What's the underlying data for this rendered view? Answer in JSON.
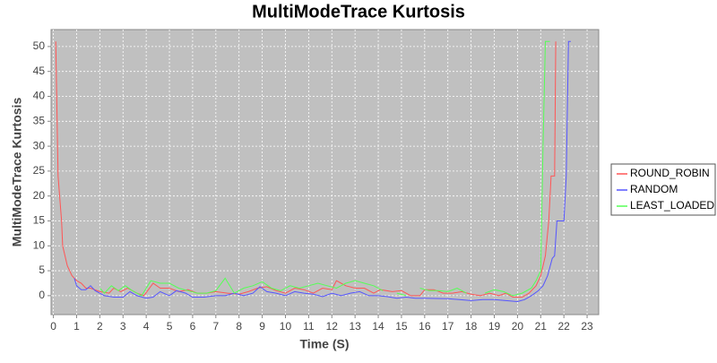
{
  "chart_data": {
    "type": "line",
    "title": "MultiModeTrace Kurtosis",
    "x_label": "Time (S)",
    "y_label": "MultiModeTrace Kurtosis",
    "xlim": [
      -0.1,
      23.5
    ],
    "ylim": [
      -3.8,
      53.4
    ],
    "xticks": [
      0,
      1,
      2,
      3,
      4,
      5,
      6,
      7,
      8,
      9,
      10,
      11,
      12,
      13,
      14,
      15,
      16,
      17,
      18,
      19,
      20,
      21,
      22,
      23
    ],
    "yticks": [
      0,
      5,
      10,
      15,
      20,
      25,
      30,
      35,
      40,
      45,
      50
    ],
    "grid": true,
    "legend": "right",
    "series": [
      {
        "name": "ROUND_ROBIN",
        "color": "#ff5555",
        "x": [
          0.1,
          0.2,
          0.35,
          0.4,
          0.6,
          0.8,
          1.0,
          1.2,
          1.4,
          1.6,
          2.0,
          2.4,
          2.6,
          2.9,
          3.2,
          3.6,
          3.9,
          4.3,
          4.6,
          5.0,
          5.4,
          5.8,
          6.2,
          6.6,
          7.0,
          7.5,
          8.0,
          8.4,
          8.8,
          9.2,
          9.6,
          10.0,
          10.4,
          10.8,
          11.2,
          11.6,
          12.0,
          12.2,
          12.6,
          13.0,
          13.4,
          13.8,
          14.1,
          14.6,
          15.0,
          15.4,
          15.8,
          16.0,
          16.4,
          16.8,
          17.2,
          17.6,
          18.0,
          18.4,
          18.8,
          19.2,
          19.5,
          19.8,
          20.2,
          20.5,
          20.8,
          21.0,
          21.2,
          21.35,
          21.45,
          21.6,
          21.65
        ],
        "values": [
          51,
          24,
          15,
          10,
          6,
          4,
          3,
          2.5,
          1.5,
          1.5,
          0.8,
          0.5,
          1.5,
          0.8,
          1.5,
          0.5,
          0,
          2.5,
          1.5,
          1.5,
          0.8,
          1.2,
          0.5,
          0.5,
          0.8,
          0.5,
          0.3,
          0.8,
          1.5,
          1.8,
          1,
          0.5,
          1.5,
          1.2,
          0.5,
          1.5,
          1.2,
          3,
          2,
          1.5,
          1.5,
          0.5,
          1.2,
          0.8,
          1,
          0,
          0,
          1.2,
          1.2,
          0.5,
          0.5,
          0.8,
          0.3,
          0,
          0.5,
          0,
          0.5,
          -0.3,
          -0.3,
          0.5,
          2,
          4,
          8,
          15,
          24,
          24,
          51
        ]
      },
      {
        "name": "RANDOM",
        "color": "#5555ff",
        "x": [
          0.9,
          1.0,
          1.2,
          1.4,
          1.6,
          1.8,
          2.2,
          2.6,
          3.0,
          3.3,
          3.6,
          4.0,
          4.3,
          4.6,
          5.0,
          5.3,
          5.7,
          6.0,
          6.5,
          7.0,
          7.4,
          7.8,
          8.2,
          8.6,
          8.9,
          9.2,
          9.6,
          10.0,
          10.4,
          10.8,
          11.2,
          11.6,
          12.0,
          12.4,
          12.8,
          13.2,
          13.6,
          14.0,
          14.4,
          14.8,
          15.2,
          15.6,
          16.0,
          17.0,
          17.5,
          18.0,
          18.5,
          19.0,
          19.5,
          20.0,
          20.3,
          20.6,
          20.9,
          21.1,
          21.3,
          21.5,
          21.6,
          21.7,
          21.9,
          22.0,
          22.1,
          22.2,
          22.3
        ],
        "values": [
          3.5,
          2,
          1.2,
          1.2,
          2,
          1,
          0,
          -0.3,
          -0.3,
          0.8,
          0,
          -0.5,
          -0.3,
          0.8,
          0,
          1,
          0.5,
          -0.3,
          -0.3,
          0,
          0,
          0.5,
          0,
          0.5,
          1.8,
          0.8,
          0.5,
          0,
          0.8,
          0.5,
          0.3,
          -0.2,
          0.5,
          0,
          0.5,
          0.8,
          0,
          0,
          -0.2,
          -0.5,
          -0.3,
          -0.5,
          -0.5,
          -0.6,
          -0.8,
          -1,
          -0.8,
          -0.8,
          -1,
          -1.2,
          -0.8,
          0,
          1,
          2,
          4,
          7.5,
          8,
          15,
          15,
          15,
          24,
          51,
          51
        ]
      },
      {
        "name": "LEAST_LOADED",
        "color": "#55ff55",
        "x": [
          2.0,
          2.2,
          2.5,
          2.8,
          3.1,
          3.4,
          3.8,
          4.2,
          4.6,
          5.0,
          5.4,
          5.8,
          6.2,
          6.6,
          7.0,
          7.4,
          7.8,
          8.2,
          8.6,
          9.0,
          9.4,
          9.8,
          10.2,
          10.6,
          11.0,
          11.4,
          11.8,
          12.2,
          12.6,
          13.0,
          13.4,
          13.8,
          14.2,
          14.5,
          14.8,
          15.2,
          15.5,
          15.8,
          16.2,
          16.6,
          17.0,
          17.4,
          17.8,
          18.2,
          18.6,
          19.0,
          19.4,
          19.8,
          20.2,
          20.6,
          20.8,
          21.0,
          21.1,
          21.2,
          21.4
        ],
        "values": [
          1.5,
          0.5,
          2,
          1,
          2,
          1,
          0,
          3,
          2.5,
          2.5,
          1.5,
          1,
          0.5,
          0.5,
          1,
          3.5,
          0.5,
          1.5,
          2,
          2.8,
          1.5,
          1,
          2,
          1.5,
          2,
          2.5,
          2,
          1.5,
          2.5,
          3,
          2.5,
          2,
          1,
          null,
          0.5,
          0,
          null,
          1.5,
          1,
          1,
          0.8,
          1.5,
          0.5,
          null,
          0.5,
          1.2,
          0.8,
          0,
          0.5,
          1.5,
          3,
          5,
          30,
          51,
          51
        ]
      }
    ]
  }
}
